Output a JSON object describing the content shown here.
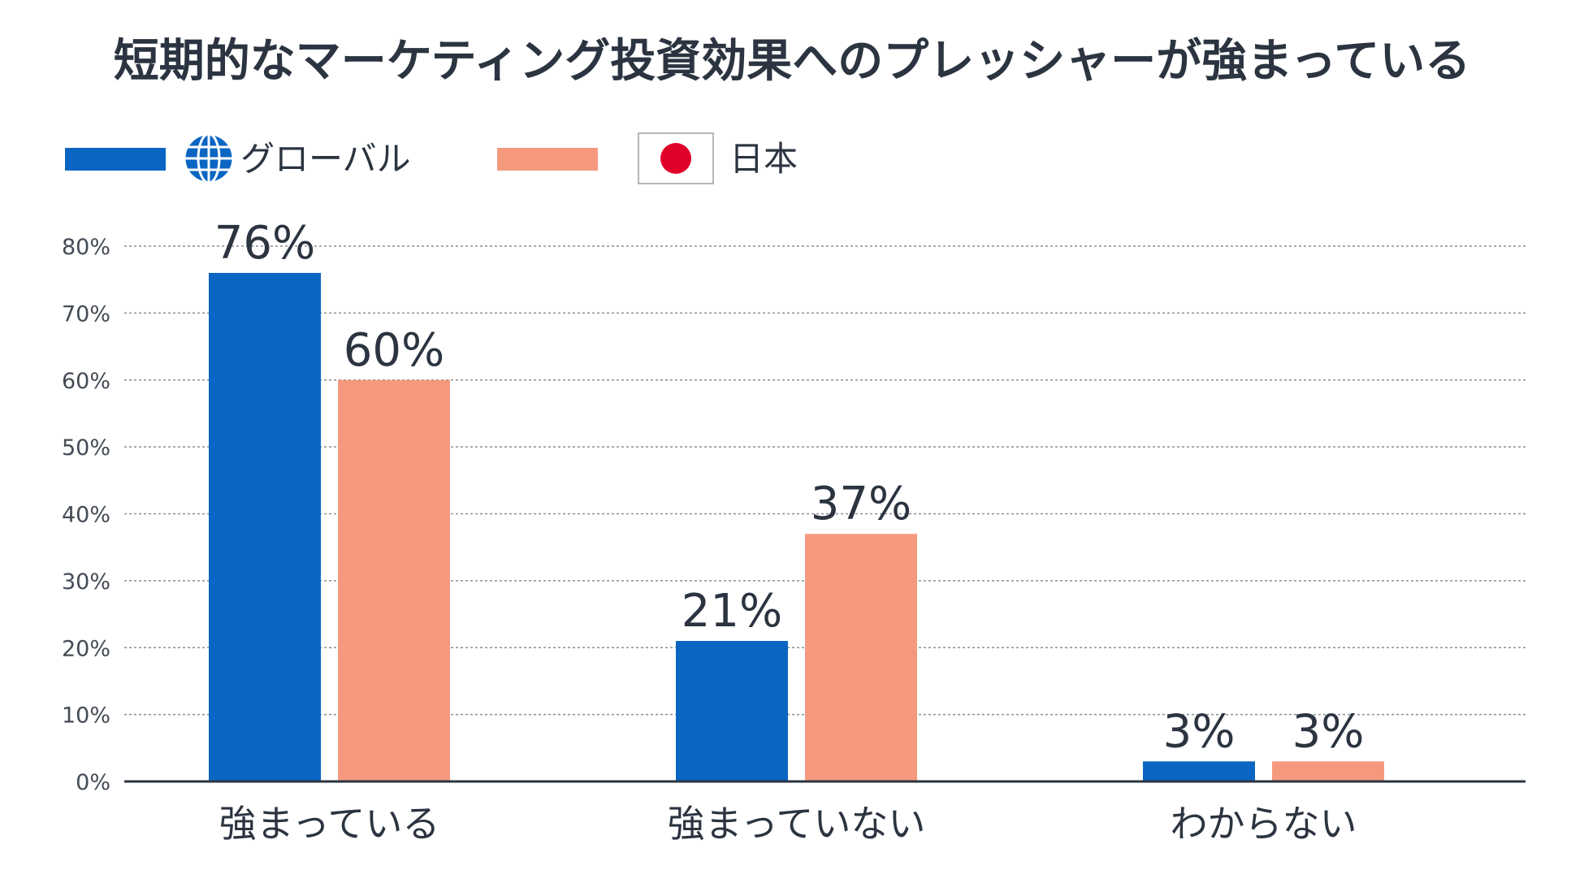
{
  "chart_data": {
    "type": "bar",
    "title": "短期的なマーケティング投資効果へのプレッシャーが強まっている",
    "categories": [
      "強まっている",
      "強まっていない",
      "わからない"
    ],
    "series": [
      {
        "name": "グローバル",
        "values": [
          76,
          21,
          3
        ],
        "color": "#0b66c3",
        "icon": "globe-icon"
      },
      {
        "name": "日本",
        "values": [
          60,
          37,
          3
        ],
        "color": "#f5997e",
        "icon": "japan-flag-icon"
      }
    ],
    "value_labels": [
      [
        "76%",
        "21%",
        "3%"
      ],
      [
        "60%",
        "37%",
        "3%"
      ]
    ],
    "ylim": [
      0,
      80
    ],
    "yticks": [
      0,
      10,
      20,
      30,
      40,
      50,
      60,
      70,
      80
    ],
    "ytick_labels": [
      "0%",
      "10%",
      "20%",
      "30%",
      "40%",
      "50%",
      "60%",
      "70%",
      "80%"
    ],
    "grid": true,
    "legend_position": "top-left",
    "xlabel": "",
    "ylabel": ""
  }
}
